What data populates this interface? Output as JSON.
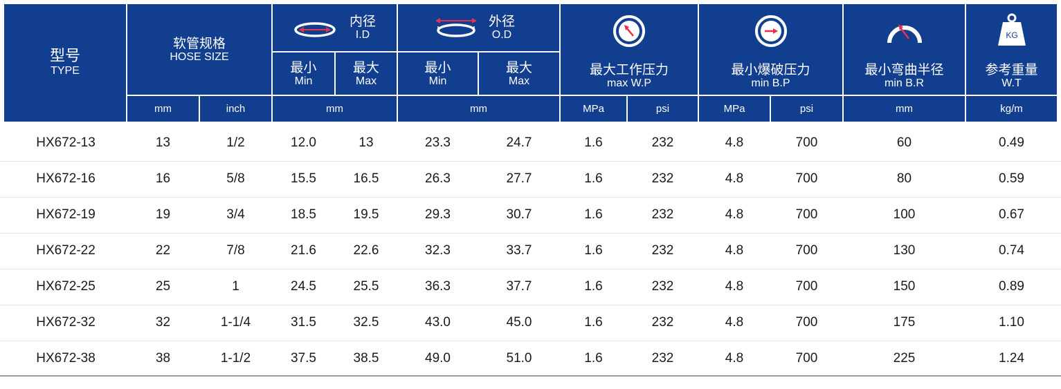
{
  "header": {
    "type_zh": "型号",
    "type_en": "TYPE",
    "hose_zh": "软管规格",
    "hose_en": "HOSE SIZE",
    "id_zh": "内径",
    "id_en": "I.D",
    "od_zh": "外径",
    "od_en": "O.D",
    "min_zh": "最小",
    "min_en": "Min",
    "max_zh": "最大",
    "max_en": "Max",
    "wp_zh": "最大工作压力",
    "wp_en": "max W.P",
    "bp_zh": "最小爆破压力",
    "bp_en": "min B.P",
    "br_zh": "最小弯曲半径",
    "br_en": "min B.R",
    "wt_zh": "参考重量",
    "wt_en": "W.T",
    "kg_label": "KG"
  },
  "units": {
    "hose_mm": "mm",
    "hose_inch": "inch",
    "id_mm": "mm",
    "od_mm": "mm",
    "wp_mpa": "MPa",
    "wp_psi": "psi",
    "bp_mpa": "MPa",
    "bp_psi": "psi",
    "br_mm": "mm",
    "wt_kgm": "kg/m"
  },
  "colors": {
    "header_bg": "#123e8f",
    "icon_arrow": "#e8304b"
  },
  "rows": [
    {
      "type": "HX672-13",
      "mm": "13",
      "inch": "1/2",
      "id_min": "12.0",
      "id_max": "13",
      "od_min": "23.3",
      "od_max": "24.7",
      "wp_mpa": "1.6",
      "wp_psi": "232",
      "bp_mpa": "4.8",
      "bp_psi": "700",
      "br": "60",
      "wt": "0.49"
    },
    {
      "type": "HX672-16",
      "mm": "16",
      "inch": "5/8",
      "id_min": "15.5",
      "id_max": "16.5",
      "od_min": "26.3",
      "od_max": "27.7",
      "wp_mpa": "1.6",
      "wp_psi": "232",
      "bp_mpa": "4.8",
      "bp_psi": "700",
      "br": "80",
      "wt": "0.59"
    },
    {
      "type": "HX672-19",
      "mm": "19",
      "inch": "3/4",
      "id_min": "18.5",
      "id_max": "19.5",
      "od_min": "29.3",
      "od_max": "30.7",
      "wp_mpa": "1.6",
      "wp_psi": "232",
      "bp_mpa": "4.8",
      "bp_psi": "700",
      "br": "100",
      "wt": "0.67"
    },
    {
      "type": "HX672-22",
      "mm": "22",
      "inch": "7/8",
      "id_min": "21.6",
      "id_max": "22.6",
      "od_min": "32.3",
      "od_max": "33.7",
      "wp_mpa": "1.6",
      "wp_psi": "232",
      "bp_mpa": "4.8",
      "bp_psi": "700",
      "br": "130",
      "wt": "0.74"
    },
    {
      "type": "HX672-25",
      "mm": "25",
      "inch": "1",
      "id_min": "24.5",
      "id_max": "25.5",
      "od_min": "36.3",
      "od_max": "37.7",
      "wp_mpa": "1.6",
      "wp_psi": "232",
      "bp_mpa": "4.8",
      "bp_psi": "700",
      "br": "150",
      "wt": "0.89"
    },
    {
      "type": "HX672-32",
      "mm": "32",
      "inch": "1-1/4",
      "id_min": "31.5",
      "id_max": "32.5",
      "od_min": "43.0",
      "od_max": "45.0",
      "wp_mpa": "1.6",
      "wp_psi": "232",
      "bp_mpa": "4.8",
      "bp_psi": "700",
      "br": "175",
      "wt": "1.10"
    },
    {
      "type": "HX672-38",
      "mm": "38",
      "inch": "1-1/2",
      "id_min": "37.5",
      "id_max": "38.5",
      "od_min": "49.0",
      "od_max": "51.0",
      "wp_mpa": "1.6",
      "wp_psi": "232",
      "bp_mpa": "4.8",
      "bp_psi": "700",
      "br": "225",
      "wt": "1.24"
    }
  ]
}
